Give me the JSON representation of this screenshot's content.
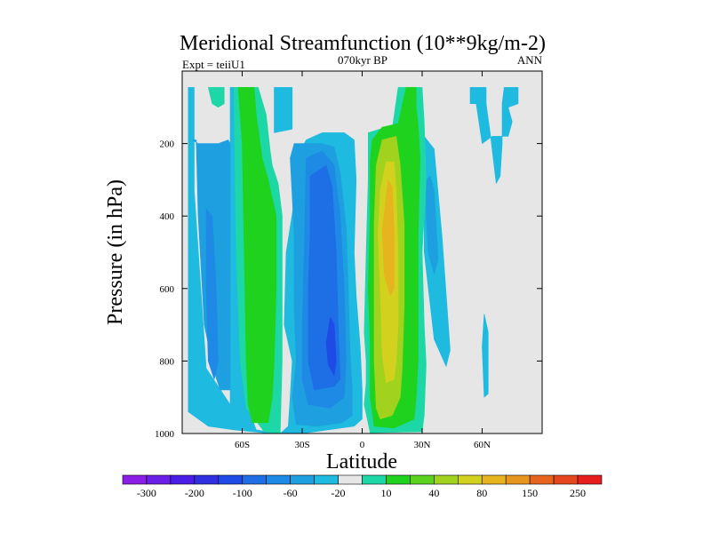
{
  "chart_data": {
    "type": "heatmap",
    "title": "Meridional Streamfunction (10**9kg/m-2)",
    "subtitle": "070kyr BP",
    "left_label": "Expt = teiiU1",
    "right_label": "ANN",
    "xlabel": "Latitude",
    "ylabel": "Pressure (in hPa)",
    "xlim": [
      -90,
      90
    ],
    "ylim": [
      0,
      1000
    ],
    "y_reversed": true,
    "x_ticks": [
      {
        "value": -60,
        "label": "60S"
      },
      {
        "value": -30,
        "label": "30S"
      },
      {
        "value": 0,
        "label": "0"
      },
      {
        "value": 30,
        "label": "30N"
      },
      {
        "value": 60,
        "label": "60N"
      }
    ],
    "y_ticks": [
      {
        "value": 200,
        "label": "200"
      },
      {
        "value": 400,
        "label": "400"
      },
      {
        "value": 600,
        "label": "600"
      },
      {
        "value": 800,
        "label": "800"
      },
      {
        "value": 1000,
        "label": "1000"
      }
    ],
    "background_color": "#e6e6e6",
    "colorbar": {
      "colors": [
        "#8a1ee6",
        "#6a1ee6",
        "#4b1ee6",
        "#3030e0",
        "#1e4be6",
        "#1e6ee6",
        "#1e8ae6",
        "#1ea0e0",
        "#1ebadf",
        "#e6e6e6",
        "#1ed7a6",
        "#1ed21e",
        "#5ad21e",
        "#a0d21e",
        "#d2d21e",
        "#e6b41e",
        "#e6961e",
        "#e6641e",
        "#e6461e",
        "#e61e1e"
      ],
      "labels": [
        {
          "index": 1,
          "text": "-300"
        },
        {
          "index": 3,
          "text": "-200"
        },
        {
          "index": 5,
          "text": "-100"
        },
        {
          "index": 7,
          "text": "-60"
        },
        {
          "index": 9,
          "text": "-20"
        },
        {
          "index": 11,
          "text": "10"
        },
        {
          "index": 13,
          "text": "40"
        },
        {
          "index": 15,
          "text": "80"
        },
        {
          "index": 17,
          "text": "150"
        },
        {
          "index": 19,
          "text": "250"
        }
      ]
    },
    "contour_regions": [
      {
        "level": "-20",
        "color": "#1ebadf",
        "points": [
          [
            -87,
            45
          ],
          [
            -84,
            45
          ],
          [
            -84,
            330
          ],
          [
            -78,
            820
          ],
          [
            -66,
            920
          ],
          [
            -66,
            45
          ],
          [
            -59,
            45
          ],
          [
            -59,
            590
          ],
          [
            -57,
            930
          ],
          [
            -53,
            990
          ],
          [
            -41,
            1000
          ],
          [
            -37,
            980
          ],
          [
            -36,
            900
          ],
          [
            -35,
            800
          ],
          [
            -39,
            700
          ],
          [
            -38,
            500
          ],
          [
            -34,
            360
          ],
          [
            -31,
            250
          ],
          [
            -29,
            200
          ],
          [
            -28,
            190
          ],
          [
            -20,
            170
          ],
          [
            -9,
            170
          ],
          [
            -4,
            190
          ],
          [
            -3,
            300
          ],
          [
            -4,
            500
          ],
          [
            -3,
            620
          ],
          [
            -1,
            760
          ],
          [
            0,
            880
          ],
          [
            0,
            960
          ],
          [
            -4,
            980
          ],
          [
            -30,
            1000
          ],
          [
            -49,
            998
          ],
          [
            -64,
            990
          ],
          [
            -77,
            980
          ],
          [
            -87,
            940
          ]
        ]
      },
      {
        "level": "-20",
        "color": "#1ebadf",
        "points": [
          [
            31,
            180
          ],
          [
            36,
            215
          ],
          [
            40,
            460
          ],
          [
            44,
            770
          ],
          [
            42,
            815
          ],
          [
            36,
            740
          ],
          [
            31,
            500
          ]
        ]
      },
      {
        "level": "-20",
        "color": "#1ebadf",
        "points": [
          [
            54,
            45
          ],
          [
            62,
            45
          ],
          [
            62,
            90
          ],
          [
            64,
            170
          ],
          [
            67,
            310
          ],
          [
            69,
            290
          ],
          [
            70,
            200
          ],
          [
            70,
            90
          ],
          [
            71,
            45
          ],
          [
            78,
            45
          ],
          [
            78,
            90
          ],
          [
            73,
            100
          ],
          [
            75,
            140
          ],
          [
            73,
            180
          ],
          [
            65,
            180
          ],
          [
            60,
            200
          ],
          [
            57,
            90
          ],
          [
            54,
            90
          ]
        ]
      },
      {
        "level": "-20",
        "color": "#1ebadf",
        "points": [
          [
            -44,
            45
          ],
          [
            -35,
            45
          ],
          [
            -35,
            160
          ],
          [
            -44,
            170
          ]
        ]
      },
      {
        "level": "-20",
        "color": "#1ebadf",
        "points": [
          [
            61,
            670
          ],
          [
            63,
            720
          ],
          [
            63,
            890
          ],
          [
            61,
            900
          ],
          [
            60,
            760
          ]
        ]
      },
      {
        "level": "-60",
        "color": "#1ea0e0",
        "points": [
          [
            -85,
            190
          ],
          [
            -83,
            190
          ],
          [
            -82,
            400
          ],
          [
            -79,
            700
          ],
          [
            -74,
            830
          ],
          [
            -71,
            880
          ],
          [
            -66,
            880
          ],
          [
            -66,
            200
          ],
          [
            -67,
            190
          ],
          [
            -72,
            200
          ],
          [
            -82,
            200
          ]
        ]
      },
      {
        "level": "-60",
        "color": "#1ea0e0",
        "points": [
          [
            -36,
            240
          ],
          [
            -34,
            200
          ],
          [
            -20,
            200
          ],
          [
            -14,
            210
          ],
          [
            -11,
            280
          ],
          [
            -8,
            430
          ],
          [
            -7,
            600
          ],
          [
            -6,
            780
          ],
          [
            -5,
            880
          ],
          [
            -5,
            950
          ],
          [
            -10,
            970
          ],
          [
            -22,
            980
          ],
          [
            -33,
            975
          ],
          [
            -35,
            900
          ],
          [
            -33,
            800
          ],
          [
            -34,
            650
          ],
          [
            -34,
            450
          ]
        ]
      },
      {
        "level": "-60",
        "color": "#1ea0e0",
        "points": [
          [
            32,
            300
          ],
          [
            34,
            290
          ],
          [
            36,
            330
          ],
          [
            38,
            520
          ],
          [
            36,
            560
          ],
          [
            33,
            500
          ],
          [
            32,
            400
          ]
        ]
      },
      {
        "level": "-100",
        "color": "#1e8ae6",
        "points": [
          [
            -78,
            380
          ],
          [
            -75,
            400
          ],
          [
            -73,
            600
          ],
          [
            -72,
            800
          ],
          [
            -74,
            850
          ],
          [
            -77,
            800
          ],
          [
            -78,
            600
          ]
        ]
      },
      {
        "level": "-100",
        "color": "#1e8ae6",
        "points": [
          [
            -28,
            240
          ],
          [
            -20,
            220
          ],
          [
            -14,
            260
          ],
          [
            -11,
            400
          ],
          [
            -9,
            600
          ],
          [
            -8,
            800
          ],
          [
            -9,
            900
          ],
          [
            -16,
            930
          ],
          [
            -27,
            920
          ],
          [
            -30,
            850
          ],
          [
            -30,
            700
          ],
          [
            -29,
            500
          ]
        ]
      },
      {
        "level": "-200",
        "color": "#1e6ee6",
        "points": [
          [
            -26,
            290
          ],
          [
            -18,
            260
          ],
          [
            -15,
            320
          ],
          [
            -13,
            500
          ],
          [
            -12,
            700
          ],
          [
            -11,
            850
          ],
          [
            -14,
            870
          ],
          [
            -24,
            880
          ],
          [
            -27,
            800
          ],
          [
            -27,
            600
          ],
          [
            -26,
            450
          ]
        ]
      },
      {
        "level": "-300",
        "color": "#1e4be6",
        "points": [
          [
            -16,
            680
          ],
          [
            -14,
            700
          ],
          [
            -13,
            800
          ],
          [
            -14,
            840
          ],
          [
            -17,
            810
          ],
          [
            -18,
            750
          ]
        ]
      },
      {
        "level": "10",
        "color": "#1ed7a6",
        "points": [
          [
            -77,
            45
          ],
          [
            -69,
            45
          ],
          [
            -69,
            90
          ],
          [
            -72,
            100
          ],
          [
            -75,
            90
          ]
        ]
      },
      {
        "level": "10",
        "color": "#1ed7a6",
        "points": [
          [
            -64,
            45
          ],
          [
            -52,
            45
          ],
          [
            -48,
            120
          ],
          [
            -46,
            220
          ],
          [
            -45,
            260
          ],
          [
            -42,
            310
          ],
          [
            -40,
            400
          ],
          [
            -40,
            600
          ],
          [
            -40,
            800
          ],
          [
            -41,
            1000
          ],
          [
            -49,
            995
          ],
          [
            -58,
            930
          ],
          [
            -61,
            800
          ],
          [
            -63,
            500
          ],
          [
            -64,
            100
          ]
        ]
      },
      {
        "level": "10",
        "color": "#1ed7a6",
        "points": [
          [
            3,
            170
          ],
          [
            9,
            160
          ],
          [
            15,
            160
          ],
          [
            18,
            45
          ],
          [
            30,
            45
          ],
          [
            31,
            140
          ],
          [
            32,
            300
          ],
          [
            30,
            500
          ],
          [
            31,
            700
          ],
          [
            32,
            810
          ],
          [
            31,
            950
          ],
          [
            30,
            995
          ],
          [
            4,
            998
          ],
          [
            1,
            920
          ],
          [
            2,
            860
          ],
          [
            2,
            800
          ],
          [
            1,
            720
          ],
          [
            2,
            500
          ],
          [
            3,
            300
          ]
        ]
      },
      {
        "level": "40",
        "color": "#1ed21e",
        "points": [
          [
            -62,
            45
          ],
          [
            -54,
            45
          ],
          [
            -53,
            120
          ],
          [
            -50,
            240
          ],
          [
            -47,
            300
          ],
          [
            -43,
            400
          ],
          [
            -43,
            600
          ],
          [
            -44,
            800
          ],
          [
            -45,
            900
          ],
          [
            -47,
            970
          ],
          [
            -55,
            970
          ],
          [
            -57,
            920
          ],
          [
            -58,
            800
          ],
          [
            -59,
            500
          ],
          [
            -60,
            200
          ]
        ]
      },
      {
        "level": "40",
        "color": "#1ed21e",
        "points": [
          [
            5,
            190
          ],
          [
            10,
            155
          ],
          [
            18,
            145
          ],
          [
            22,
            45
          ],
          [
            27,
            45
          ],
          [
            27,
            100
          ],
          [
            28,
            150
          ],
          [
            29,
            240
          ],
          [
            28,
            450
          ],
          [
            28,
            700
          ],
          [
            28,
            800
          ],
          [
            27,
            900
          ],
          [
            26,
            960
          ],
          [
            16,
            985
          ],
          [
            6,
            980
          ],
          [
            4,
            900
          ],
          [
            4,
            750
          ],
          [
            3,
            600
          ],
          [
            4,
            400
          ],
          [
            4,
            250
          ]
        ]
      },
      {
        "level": "80",
        "color": "#a0d21e",
        "points": [
          [
            7,
            260
          ],
          [
            10,
            190
          ],
          [
            17,
            180
          ],
          [
            19,
            260
          ],
          [
            21,
            420
          ],
          [
            21,
            650
          ],
          [
            20,
            820
          ],
          [
            19,
            900
          ],
          [
            15,
            950
          ],
          [
            9,
            960
          ],
          [
            7,
            930
          ],
          [
            6,
            800
          ],
          [
            6,
            620
          ],
          [
            6,
            420
          ]
        ]
      },
      {
        "level": "150",
        "color": "#d2d21e",
        "points": [
          [
            9,
            330
          ],
          [
            12,
            250
          ],
          [
            16,
            250
          ],
          [
            17,
            330
          ],
          [
            18,
            500
          ],
          [
            18,
            700
          ],
          [
            17,
            800
          ],
          [
            16,
            850
          ],
          [
            12,
            860
          ],
          [
            10,
            780
          ],
          [
            9,
            600
          ],
          [
            8,
            450
          ]
        ]
      },
      {
        "level": "250",
        "color": "#e6b41e",
        "points": [
          [
            10,
            440
          ],
          [
            13,
            300
          ],
          [
            15,
            320
          ],
          [
            16,
            450
          ],
          [
            16,
            600
          ],
          [
            14,
            620
          ],
          [
            11,
            560
          ]
        ]
      }
    ]
  }
}
